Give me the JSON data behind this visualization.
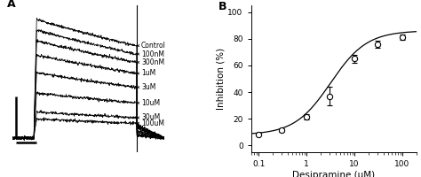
{
  "panel_B": {
    "x_data": [
      0.1,
      0.3,
      1.0,
      3.0,
      10.0,
      30.0,
      100.0
    ],
    "y_data": [
      8.5,
      11.5,
      21.5,
      37.0,
      65.0,
      76.0,
      81.0
    ],
    "y_err": [
      1.2,
      1.2,
      2.0,
      7.0,
      3.0,
      2.5,
      2.0
    ],
    "xlabel": "Desipramine (μM)",
    "ylabel": "Inhibition (%)",
    "xlim": [
      0.07,
      200
    ],
    "ylim": [
      -5,
      105
    ],
    "yticks": [
      0,
      20,
      40,
      60,
      80,
      100
    ],
    "xticks": [
      0.1,
      1,
      10,
      100
    ],
    "xtick_labels": [
      "0.1",
      "1",
      "10",
      "100"
    ],
    "panel_label": "B",
    "hill_Imax": 86.0,
    "hill_EC50": 3.2,
    "hill_n": 1.15,
    "hill_baseline": 8.0
  },
  "panel_A": {
    "panel_label": "A",
    "labels": [
      "Control",
      "100nM",
      "300nM",
      "1uM",
      "3uM",
      "10uM",
      "30uM",
      "100uM"
    ],
    "amplitudes": [
      1.0,
      0.91,
      0.82,
      0.7,
      0.55,
      0.38,
      0.22,
      0.16
    ]
  },
  "bg_color": "#ffffff",
  "fontsize_label": 7.5,
  "fontsize_tick": 6.5,
  "fontsize_panel": 9,
  "fontsize_trace_label": 5.5
}
